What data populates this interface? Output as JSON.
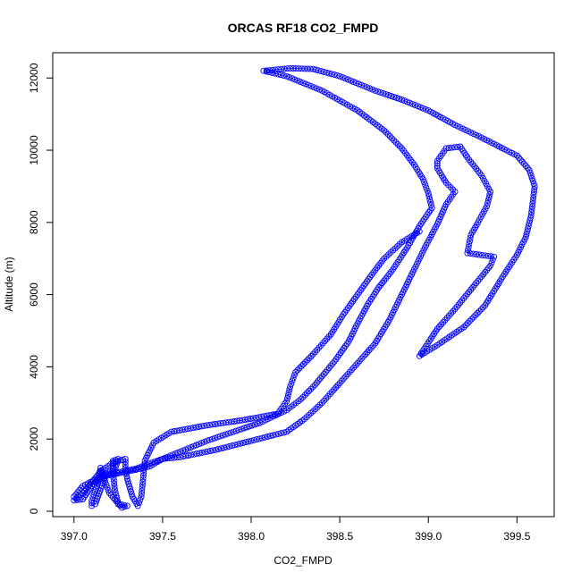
{
  "chart_data": {
    "type": "scatter",
    "title": "ORCAS RF18 CO2_FMPD",
    "xlabel": "CO2_FMPD",
    "ylabel": "Altitude (m)",
    "xlim": [
      396.88,
      399.71
    ],
    "ylim": [
      -150,
      12700
    ],
    "x_ticks": [
      "397.0",
      "397.5",
      "398.0",
      "398.5",
      "399.0",
      "399.5"
    ],
    "y_ticks": [
      "0",
      "2000",
      "4000",
      "6000",
      "8000",
      "10000",
      "12000"
    ],
    "grid": false,
    "marker": "open-circle",
    "color": "#0000ff",
    "series": [
      {
        "values": [
          [
            398.95,
            7750
          ],
          [
            398.85,
            7450
          ],
          [
            398.75,
            7000
          ],
          [
            398.68,
            6550
          ],
          [
            398.6,
            6000
          ],
          [
            398.52,
            5450
          ],
          [
            398.45,
            4900
          ],
          [
            398.35,
            4350
          ],
          [
            398.25,
            3850
          ],
          [
            398.22,
            3450
          ],
          [
            398.2,
            3050
          ],
          [
            398.15,
            2700
          ],
          [
            397.95,
            2520
          ],
          [
            397.75,
            2380
          ],
          [
            397.55,
            2200
          ],
          [
            397.45,
            1900
          ],
          [
            397.4,
            1400
          ],
          [
            397.39,
            900
          ],
          [
            397.38,
            400
          ],
          [
            397.36,
            150
          ],
          [
            397.33,
            400
          ],
          [
            397.3,
            900
          ],
          [
            397.29,
            1200
          ],
          [
            397.29,
            1450
          ],
          [
            397.22,
            1350
          ],
          [
            397.15,
            1100
          ],
          [
            397.1,
            800
          ],
          [
            397.05,
            500
          ],
          [
            397.0,
            300
          ],
          [
            397.05,
            330
          ],
          [
            397.1,
            700
          ],
          [
            397.16,
            950
          ],
          [
            397.23,
            1150
          ],
          [
            397.25,
            1450
          ],
          [
            397.22,
            1400
          ],
          [
            397.22,
            1100
          ],
          [
            397.23,
            600
          ],
          [
            397.25,
            200
          ],
          [
            397.3,
            150
          ],
          [
            397.27,
            100
          ],
          [
            397.2,
            500
          ],
          [
            397.17,
            900
          ],
          [
            397.15,
            1200
          ],
          [
            397.13,
            700
          ],
          [
            397.1,
            300
          ],
          [
            397.1,
            150
          ],
          [
            397.12,
            200
          ],
          [
            397.18,
            1000
          ],
          [
            397.35,
            1180
          ],
          [
            397.5,
            1450
          ],
          [
            397.6,
            1500
          ],
          [
            397.8,
            1700
          ],
          [
            398.0,
            1950
          ],
          [
            398.2,
            2200
          ],
          [
            398.3,
            2550
          ],
          [
            398.4,
            3000
          ],
          [
            398.5,
            3550
          ],
          [
            398.6,
            4100
          ],
          [
            398.7,
            4650
          ],
          [
            398.78,
            5300
          ],
          [
            398.85,
            6000
          ],
          [
            398.92,
            6700
          ],
          [
            398.98,
            7300
          ],
          [
            399.05,
            7950
          ],
          [
            399.1,
            8500
          ],
          [
            399.15,
            8850
          ],
          [
            399.1,
            9100
          ],
          [
            399.05,
            9500
          ],
          [
            399.05,
            9700
          ],
          [
            399.1,
            10050
          ],
          [
            399.18,
            10100
          ],
          [
            399.22,
            9800
          ],
          [
            399.3,
            9300
          ],
          [
            399.35,
            8850
          ],
          [
            399.33,
            8450
          ],
          [
            399.28,
            8000
          ],
          [
            399.24,
            7650
          ],
          [
            399.22,
            7150
          ],
          [
            399.37,
            7050
          ],
          [
            399.35,
            6800
          ],
          [
            399.25,
            6200
          ],
          [
            399.15,
            5600
          ],
          [
            399.05,
            5050
          ],
          [
            398.95,
            4300
          ],
          [
            399.05,
            4600
          ],
          [
            399.2,
            5100
          ],
          [
            399.32,
            5700
          ],
          [
            399.42,
            6500
          ],
          [
            399.5,
            7100
          ],
          [
            399.55,
            7600
          ],
          [
            399.58,
            8200
          ],
          [
            399.6,
            9000
          ],
          [
            399.57,
            9450
          ],
          [
            399.5,
            9850
          ],
          [
            399.4,
            10100
          ],
          [
            399.3,
            10350
          ],
          [
            399.15,
            10700
          ],
          [
            399.0,
            11100
          ],
          [
            398.85,
            11400
          ],
          [
            398.7,
            11650
          ],
          [
            398.5,
            12050
          ],
          [
            398.35,
            12250
          ],
          [
            398.22,
            12270
          ],
          [
            398.07,
            12200
          ],
          [
            398.2,
            12050
          ],
          [
            398.4,
            11650
          ],
          [
            398.6,
            11100
          ],
          [
            398.75,
            10550
          ],
          [
            398.85,
            10050
          ],
          [
            398.92,
            9600
          ],
          [
            398.97,
            9200
          ],
          [
            399.0,
            8800
          ],
          [
            399.02,
            8400
          ],
          [
            398.95,
            7900
          ],
          [
            398.88,
            7300
          ],
          [
            398.8,
            6700
          ],
          [
            398.72,
            6200
          ],
          [
            398.66,
            5750
          ],
          [
            398.6,
            5200
          ],
          [
            398.55,
            4700
          ],
          [
            398.47,
            4150
          ],
          [
            398.36,
            3500
          ],
          [
            398.28,
            3100
          ],
          [
            398.2,
            2800
          ],
          [
            398.05,
            2450
          ],
          [
            397.9,
            2200
          ],
          [
            397.75,
            1950
          ],
          [
            397.6,
            1650
          ],
          [
            397.5,
            1450
          ],
          [
            397.43,
            1250
          ],
          [
            397.35,
            1150
          ],
          [
            397.25,
            1050
          ],
          [
            397.15,
            950
          ],
          [
            397.05,
            700
          ],
          [
            397.0,
            400
          ]
        ]
      }
    ]
  }
}
